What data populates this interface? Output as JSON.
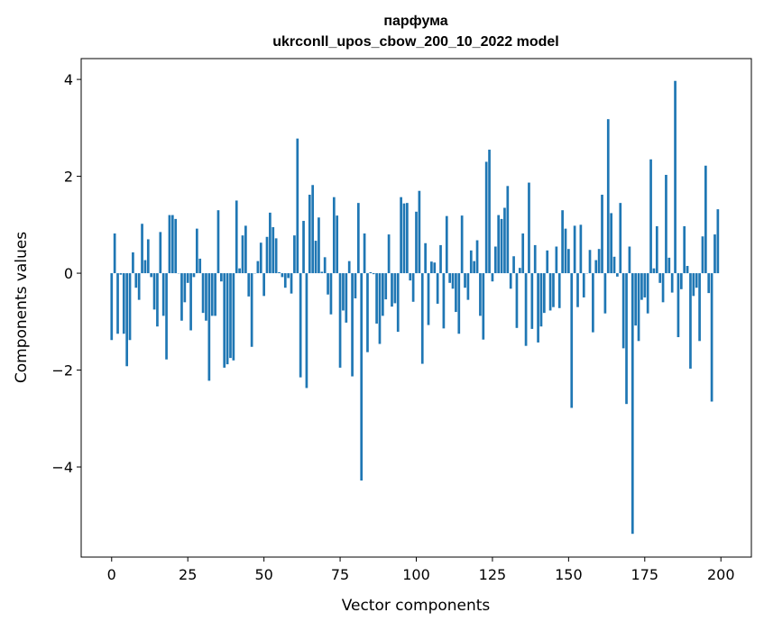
{
  "chart_data": {
    "type": "bar",
    "title_line1": "парфума",
    "title_line2": "ukrconll_upos_cbow_200_10_2022 model",
    "xlabel": "Vector components",
    "ylabel": "Components values",
    "xlim": [
      -10,
      210
    ],
    "ylim": [
      -5.86,
      4.43
    ],
    "xticks": [
      0,
      25,
      50,
      75,
      100,
      125,
      150,
      175,
      200
    ],
    "xtick_labels": [
      "0",
      "25",
      "50",
      "75",
      "100",
      "125",
      "150",
      "175",
      "200"
    ],
    "yticks": [
      -4,
      -2,
      0,
      2,
      4
    ],
    "ytick_labels": [
      "−4",
      "−2",
      "0",
      "2",
      "4"
    ],
    "grid": false,
    "color": "#1f77b4",
    "values": [
      -1.38,
      0.82,
      -1.25,
      -0.03,
      -1.25,
      -1.92,
      -1.38,
      0.43,
      -0.3,
      -0.55,
      1.02,
      0.27,
      0.7,
      -0.08,
      -0.75,
      -1.1,
      0.85,
      -0.88,
      -1.78,
      1.2,
      1.2,
      1.12,
      0,
      -0.98,
      -0.6,
      -0.2,
      -1.18,
      -0.08,
      0.92,
      0.3,
      -0.82,
      -0.98,
      -2.22,
      -0.88,
      -0.88,
      1.3,
      -0.17,
      -1.95,
      -1.88,
      -1.75,
      -1.8,
      1.5,
      0.1,
      0.78,
      0.98,
      -0.48,
      -1.52,
      0,
      0.25,
      0.63,
      -0.47,
      0.75,
      1.25,
      0.95,
      0.72,
      0.02,
      -0.08,
      -0.3,
      -0.1,
      -0.42,
      0.78,
      2.78,
      -2.15,
      1.08,
      -2.37,
      1.62,
      1.82,
      0.67,
      1.15,
      0.03,
      0.33,
      -0.44,
      -0.85,
      1.57,
      1.19,
      -1.95,
      -0.77,
      -1.02,
      0.25,
      -2.13,
      -0.52,
      1.45,
      -4.28,
      0.82,
      -1.63,
      0.02,
      -0.02,
      -1.04,
      -1.46,
      -0.88,
      -0.54,
      0.8,
      -0.69,
      -0.62,
      -1.21,
      1.57,
      1.44,
      1.45,
      -0.15,
      -0.59,
      1.27,
      1.7,
      -1.87,
      0.62,
      -1.07,
      0.24,
      0.22,
      -0.63,
      0.58,
      -1.14,
      1.18,
      -0.2,
      -0.32,
      -0.8,
      -1.25,
      1.19,
      -0.3,
      -0.55,
      0.47,
      0.25,
      0.68,
      -0.88,
      -1.37,
      2.3,
      2.55,
      -0.17,
      0.55,
      1.2,
      1.12,
      1.35,
      1.8,
      -0.32,
      0.35,
      -1.13,
      0.11,
      0.82,
      -1.5,
      1.87,
      -1.15,
      0.58,
      -1.43,
      -1.1,
      -0.82,
      0.47,
      -0.77,
      -0.7,
      0.55,
      -0.72,
      1.3,
      0.92,
      0.5,
      -2.78,
      0.98,
      -0.7,
      1.0,
      -0.5,
      0,
      0.48,
      -1.22,
      0.27,
      0.5,
      1.62,
      -0.83,
      3.18,
      1.24,
      0.34,
      -0.07,
      1.45,
      -1.55,
      -2.7,
      0.55,
      -5.38,
      -1.08,
      -1.4,
      -0.55,
      -0.5,
      -0.83,
      2.35,
      0.1,
      0.97,
      -0.2,
      -0.6,
      2.03,
      0.32,
      -0.4,
      3.97,
      -1.32,
      -0.33,
      0.97,
      0.15,
      -1.97,
      -0.47,
      -0.3,
      -1.4,
      0.76,
      2.22,
      -0.41,
      -2.65,
      0.8,
      1.32
    ]
  }
}
